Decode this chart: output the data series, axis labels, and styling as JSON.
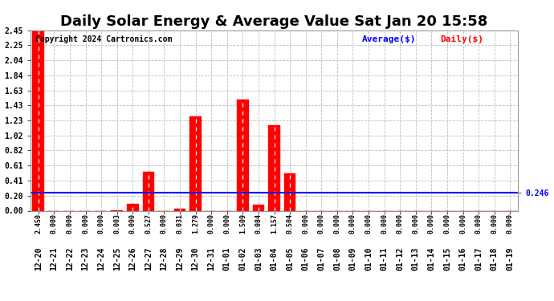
{
  "title": "Daily Solar Energy & Average Value Sat Jan 20 15:58",
  "copyright": "Copyright 2024 Cartronics.com",
  "legend_average": "Average($)",
  "legend_daily": "Daily($)",
  "categories": [
    "12-20",
    "12-21",
    "12-22",
    "12-23",
    "12-24",
    "12-25",
    "12-26",
    "12-27",
    "12-28",
    "12-29",
    "12-30",
    "12-31",
    "01-01",
    "01-02",
    "01-03",
    "01-04",
    "01-05",
    "01-06",
    "01-07",
    "01-08",
    "01-09",
    "01-10",
    "01-11",
    "01-12",
    "01-13",
    "01-14",
    "01-15",
    "01-16",
    "01-17",
    "01-18",
    "01-19"
  ],
  "values": [
    2.45,
    0.0,
    0.0,
    0.0,
    0.0,
    0.003,
    0.09,
    0.527,
    0.0,
    0.031,
    1.279,
    0.0,
    0.0,
    1.509,
    0.084,
    1.157,
    0.504,
    0.0,
    0.0,
    0.0,
    0.0,
    0.0,
    0.0,
    0.0,
    0.0,
    0.0,
    0.0,
    0.0,
    0.0,
    0.0,
    0.0
  ],
  "average_value": 0.246,
  "ylim": [
    0.0,
    2.45
  ],
  "yticks": [
    0.0,
    0.2,
    0.41,
    0.61,
    0.82,
    1.02,
    1.23,
    1.43,
    1.63,
    1.84,
    2.04,
    2.25,
    2.45
  ],
  "bar_color": "#ff0000",
  "average_line_color": "#0000ff",
  "background_color": "#ffffff",
  "grid_color": "#bbbbbb",
  "title_fontsize": 13,
  "tick_fontsize": 7,
  "annotation_fontsize": 6,
  "copyright_fontsize": 7,
  "legend_fontsize": 8
}
